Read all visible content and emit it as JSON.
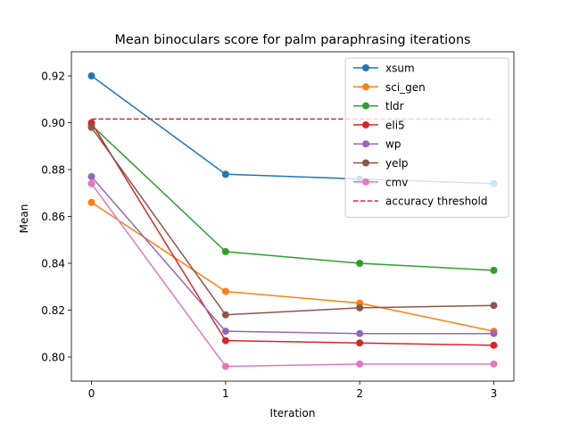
{
  "chart_data": {
    "type": "line",
    "title": "Mean binoculars score for palm paraphrasing iterations",
    "xlabel": "Iteration",
    "ylabel": "Mean",
    "x": [
      0,
      1,
      2,
      3
    ],
    "xticks": [
      "0",
      "1",
      "2",
      "3"
    ],
    "yticks": [
      "0.80",
      "0.82",
      "0.84",
      "0.86",
      "0.88",
      "0.90",
      "0.92"
    ],
    "xlim": [
      -0.15,
      3.15
    ],
    "ylim": [
      0.7897,
      0.9303
    ],
    "grid": false,
    "legend_position": "upper right",
    "series": [
      {
        "name": "xsum",
        "color": "#1f77b4",
        "values": [
          0.92,
          0.878,
          0.876,
          0.874
        ]
      },
      {
        "name": "sci_gen",
        "color": "#ff7f0e",
        "values": [
          0.866,
          0.828,
          0.823,
          0.811
        ]
      },
      {
        "name": "tldr",
        "color": "#2ca02c",
        "values": [
          0.899,
          0.845,
          0.84,
          0.837
        ]
      },
      {
        "name": "eli5",
        "color": "#d62728",
        "values": [
          0.9,
          0.807,
          0.806,
          0.805
        ]
      },
      {
        "name": "wp",
        "color": "#9467bd",
        "values": [
          0.877,
          0.811,
          0.81,
          0.81
        ]
      },
      {
        "name": "yelp",
        "color": "#8c564b",
        "values": [
          0.898,
          0.818,
          0.821,
          0.822
        ]
      },
      {
        "name": "cmv",
        "color": "#e377c2",
        "values": [
          0.874,
          0.796,
          0.797,
          0.797
        ]
      }
    ],
    "threshold": {
      "name": "accuracy threshold",
      "value": 0.9016,
      "color": "#d62728",
      "style": "dashed"
    }
  }
}
